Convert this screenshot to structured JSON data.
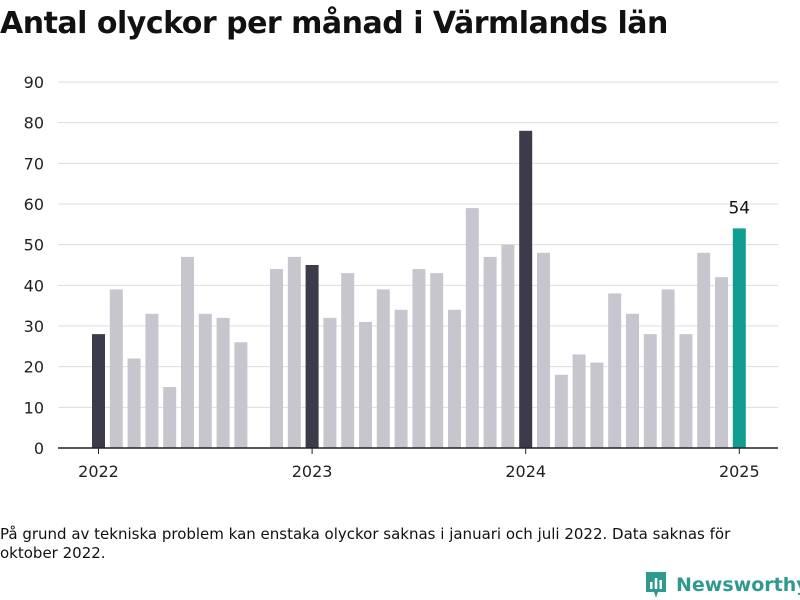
{
  "title": "Antal olyckor per månad i Värmlands län",
  "footnote": "På grund av tekniska problem kan enstaka olyckor saknas i januari och juli 2022. Data saknas för oktober 2022.",
  "brand": {
    "name": "Newsworthy",
    "icon": "newsworthy-logo-icon",
    "color": "#2e9a8e"
  },
  "chart_data": {
    "type": "bar",
    "x_ticks": [
      "2022",
      "2023",
      "2024",
      "2025"
    ],
    "y_ticks": [
      0,
      10,
      20,
      30,
      40,
      50,
      60,
      70,
      80,
      90
    ],
    "ylim": [
      0,
      90
    ],
    "grid": true,
    "series": [
      {
        "months": [
          "2022-01",
          "2022-02",
          "2022-03",
          "2022-04",
          "2022-05",
          "2022-06",
          "2022-07",
          "2022-08",
          "2022-09",
          "2022-10",
          "2022-11",
          "2022-12",
          "2023-01",
          "2023-02",
          "2023-03",
          "2023-04",
          "2023-05",
          "2023-06",
          "2023-07",
          "2023-08",
          "2023-09",
          "2023-10",
          "2023-11",
          "2023-12",
          "2024-01",
          "2024-02",
          "2024-03",
          "2024-04",
          "2024-05",
          "2024-06",
          "2024-07",
          "2024-08",
          "2024-09",
          "2024-10",
          "2024-11",
          "2024-12",
          "2025-01"
        ],
        "values": [
          28,
          39,
          22,
          33,
          15,
          47,
          33,
          32,
          26,
          null,
          44,
          47,
          45,
          32,
          43,
          31,
          39,
          34,
          44,
          43,
          34,
          59,
          47,
          50,
          78,
          48,
          18,
          23,
          21,
          38,
          33,
          28,
          39,
          28,
          48,
          42,
          54
        ]
      }
    ],
    "highlight_label": "54",
    "colors": {
      "default": "#c7c6cf",
      "january": "#3c3b49",
      "latest": "#0f9e91"
    }
  }
}
